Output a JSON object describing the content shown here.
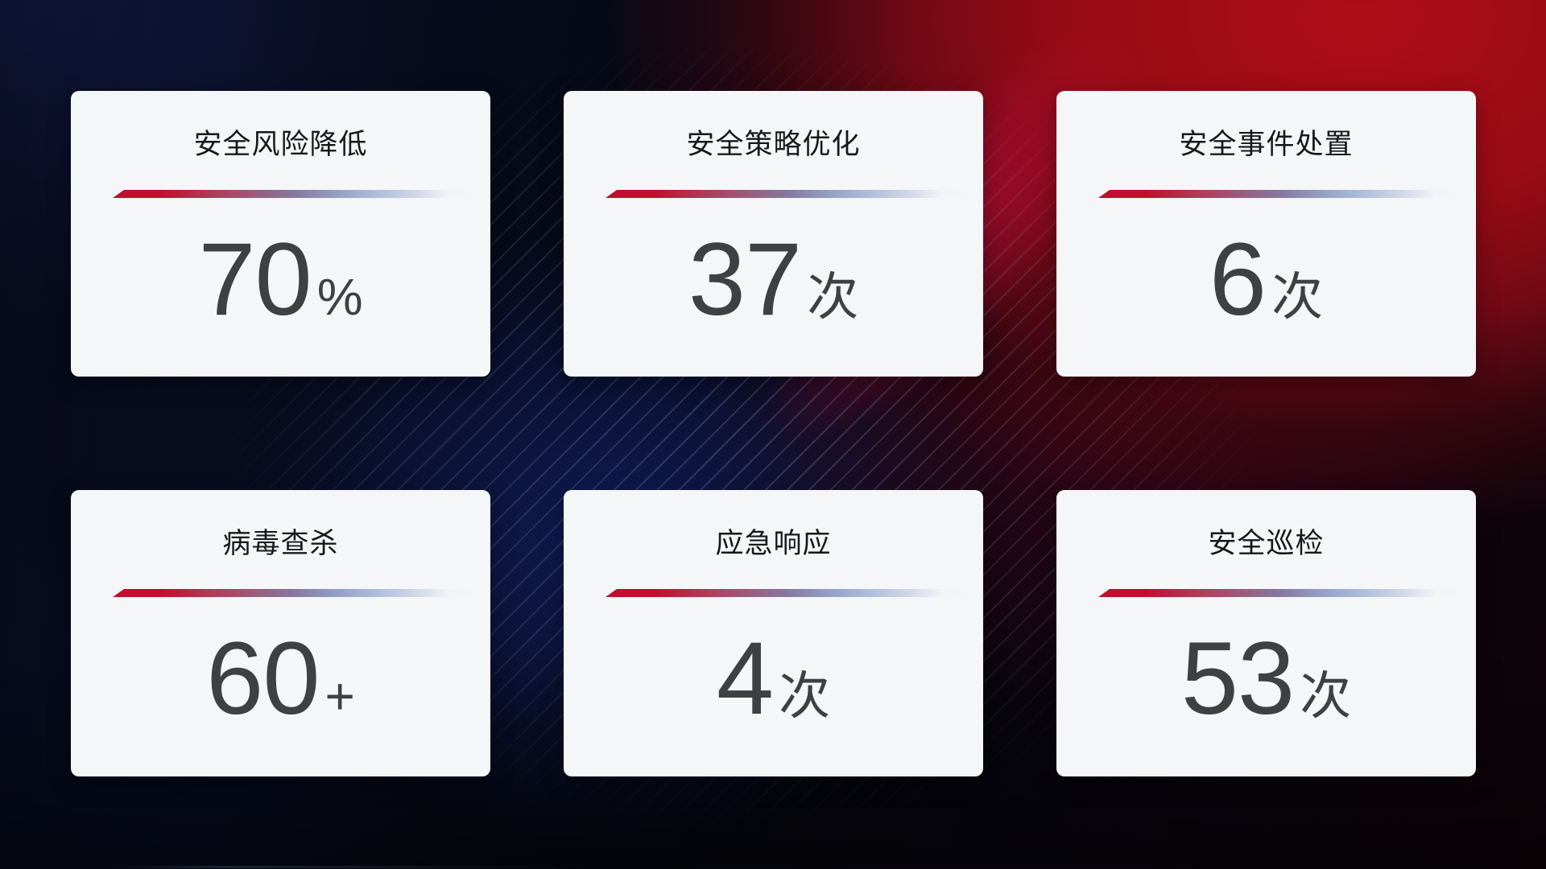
{
  "theme": {
    "bg_base": "#05060e",
    "bg_navy_glow": "#111840",
    "bg_red_glow": "#ad0d17",
    "bg_magenta_band": "#c10d3e",
    "card_bg": "#f5f6f8",
    "title_color": "#17181c",
    "value_color": "#3e4044",
    "divider_red": "#c30d2e",
    "divider_blue": "#a9bcda"
  },
  "cards": [
    {
      "title": "安全风险降低",
      "value": "70",
      "unit": "%"
    },
    {
      "title": "安全策略优化",
      "value": "37",
      "unit": "次"
    },
    {
      "title": "安全事件处置",
      "value": "6",
      "unit": "次"
    },
    {
      "title": "病毒查杀",
      "value": "60",
      "unit": "+"
    },
    {
      "title": "应急响应",
      "value": "4",
      "unit": "次"
    },
    {
      "title": "安全巡检",
      "value": "53",
      "unit": "次"
    }
  ]
}
